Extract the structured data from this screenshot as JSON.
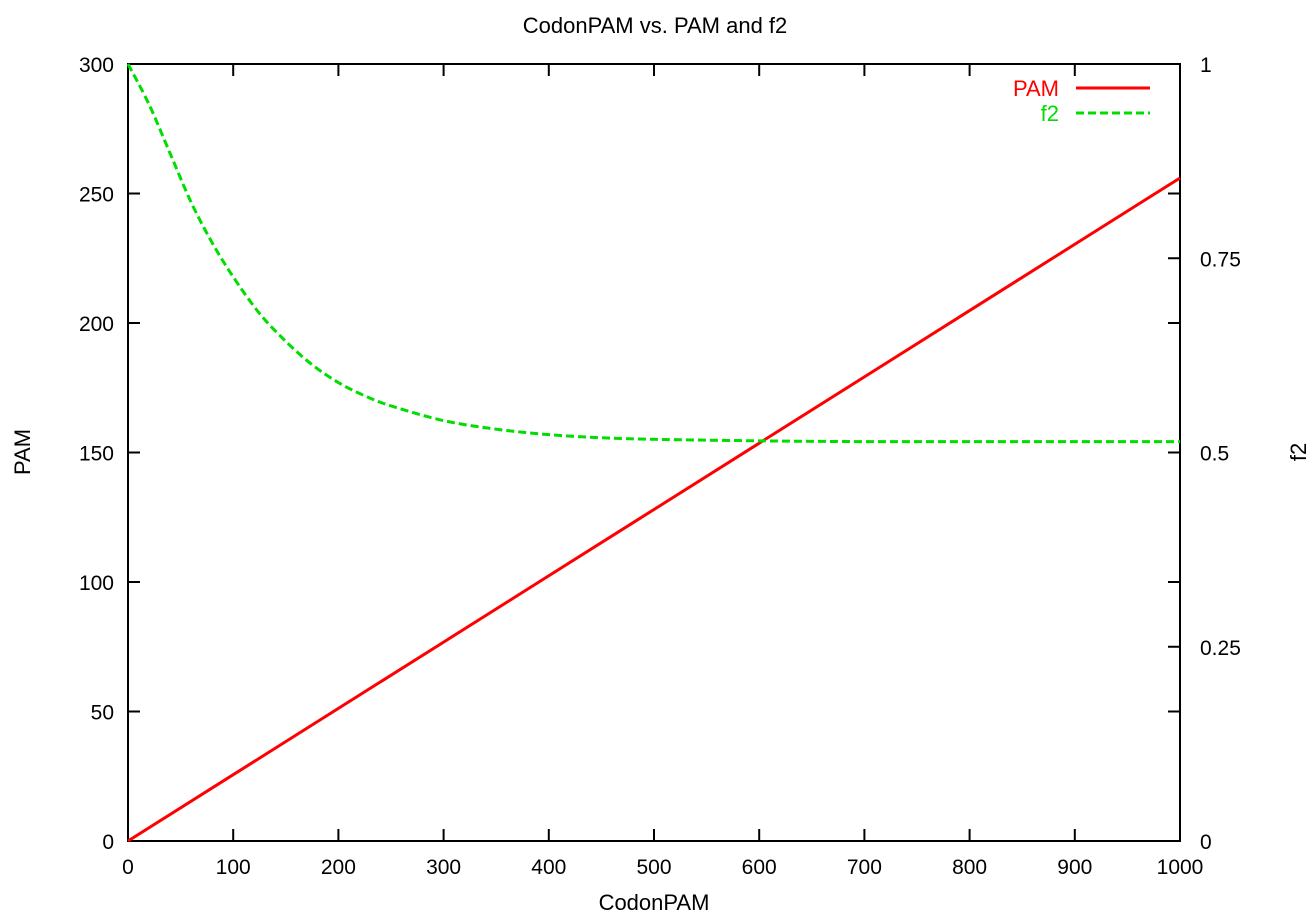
{
  "chart_data": {
    "type": "line",
    "title": "CodonPAM vs. PAM and f2",
    "xlabel": "CodonPAM",
    "ylabel": "PAM",
    "y2label": "f2",
    "xlim": [
      0,
      1000
    ],
    "ylim": [
      0,
      300
    ],
    "y2lim": [
      0,
      1
    ],
    "x_ticks": [
      0,
      100,
      200,
      300,
      400,
      500,
      600,
      700,
      800,
      900,
      1000
    ],
    "x_tick_labels": [
      "0",
      "100",
      "200",
      "300",
      "400",
      "500",
      "600",
      "700",
      "800",
      "900",
      "1000"
    ],
    "y_ticks": [
      0,
      50,
      100,
      150,
      200,
      250,
      300
    ],
    "y_tick_labels": [
      "0",
      "50",
      "100",
      "150",
      "200",
      "250",
      "300"
    ],
    "y2_ticks": [
      0,
      0.25,
      0.5,
      0.75,
      1
    ],
    "y2_tick_labels": [
      "0",
      "0.25",
      "0.5",
      "0.75",
      "1"
    ],
    "grid": false,
    "legend_position": "top-right",
    "series": [
      {
        "name": "PAM",
        "axis": "left",
        "color": "#ff0000",
        "dash": "solid",
        "x": [
          0,
          100,
          200,
          300,
          400,
          500,
          600,
          700,
          800,
          900,
          1000
        ],
        "values": [
          0,
          25.6,
          51.2,
          76.8,
          102.4,
          128.0,
          153.6,
          179.2,
          204.8,
          230.4,
          256.0
        ]
      },
      {
        "name": "f2",
        "axis": "right",
        "color": "#00dd00",
        "dash": "dashed",
        "x": [
          0,
          20,
          40,
          60,
          80,
          100,
          125,
          150,
          175,
          200,
          225,
          250,
          300,
          350,
          400,
          450,
          500,
          600,
          700,
          800,
          900,
          1000
        ],
        "values": [
          1.0,
          0.948,
          0.885,
          0.822,
          0.77,
          0.726,
          0.679,
          0.643,
          0.613,
          0.59,
          0.573,
          0.56,
          0.541,
          0.53,
          0.523,
          0.519,
          0.517,
          0.515,
          0.514,
          0.514,
          0.514,
          0.514
        ]
      }
    ]
  }
}
